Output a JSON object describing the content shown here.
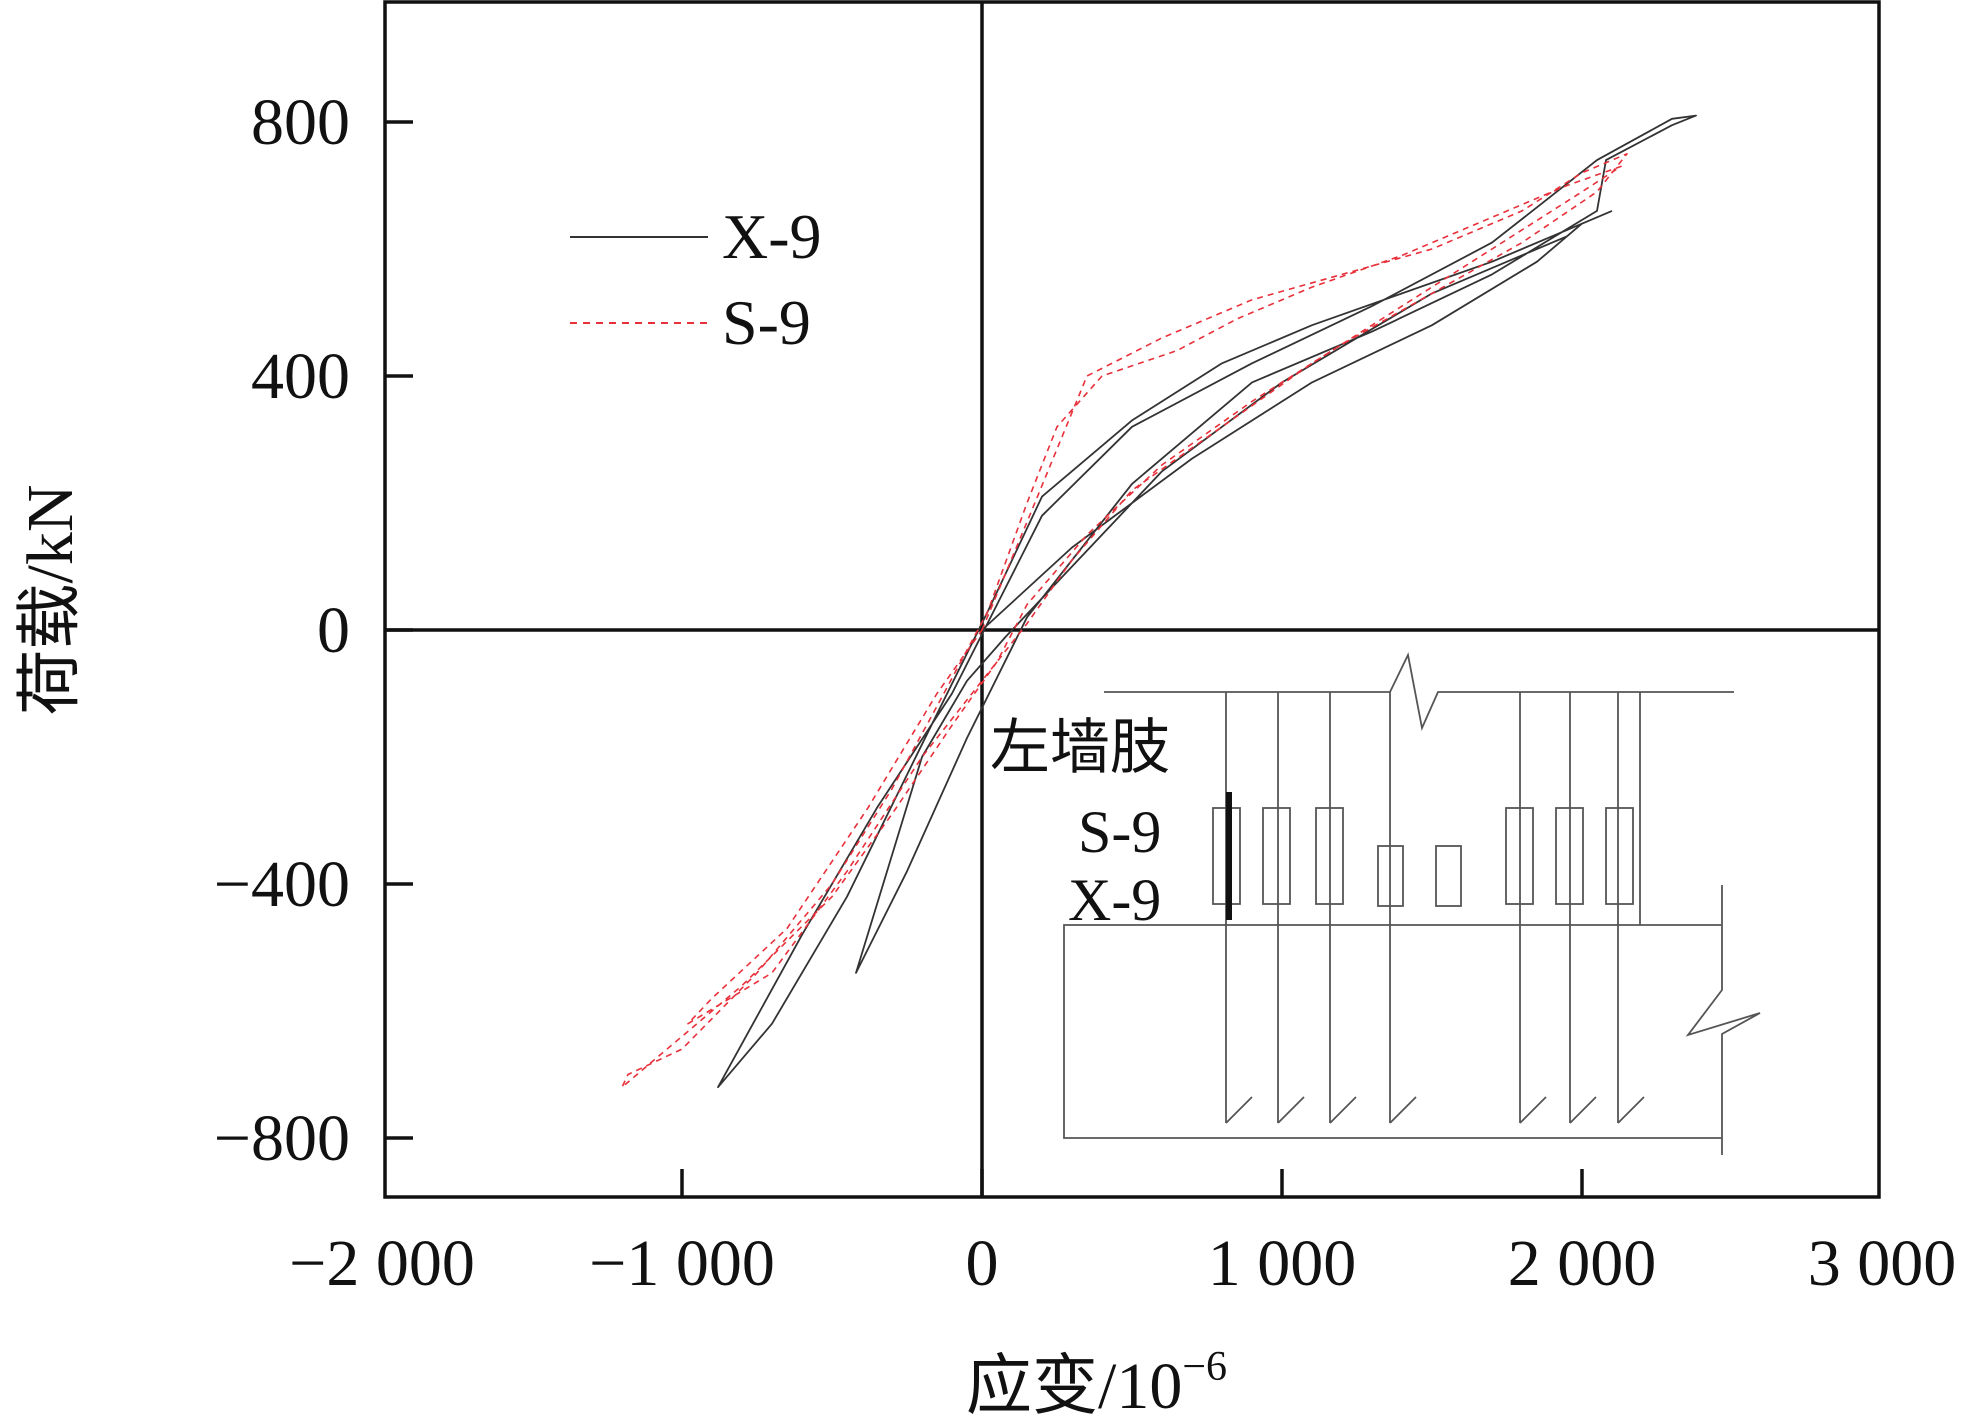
{
  "chart_data": {
    "type": "line",
    "xlabel": "应变/10",
    "xlabel_sup": "−6",
    "ylabel": "荷载/kN",
    "xlim": [
      -2000,
      3000
    ],
    "ylim": [
      -900,
      1000
    ],
    "x_ticks": [
      -2000,
      -1000,
      0,
      1000,
      2000,
      3000
    ],
    "x_tick_labels": [
      "−2 000",
      "−1 000",
      "0",
      "1 000",
      "2 000",
      "3 000"
    ],
    "y_ticks": [
      -800,
      -400,
      0,
      400,
      800
    ],
    "y_tick_labels": [
      "−800",
      "−400",
      "0",
      "400",
      "800"
    ],
    "grid": false,
    "legend": "top-left",
    "series": [
      {
        "name": "X-9",
        "color": "#333333",
        "style": "solid",
        "x": [
          0,
          300,
          700,
          1100,
          1500,
          1850,
          2000,
          1950,
          1500,
          1000,
          600,
          300,
          80,
          -50,
          -200,
          -420,
          -250,
          -50,
          150,
          500,
          900,
          1300,
          1700,
          2050,
          2080,
          2300,
          2380,
          2300,
          2050,
          1700,
          1300,
          900,
          500,
          200,
          50,
          -100,
          -350,
          -600,
          -880,
          -700,
          -450,
          -200,
          20,
          200,
          500,
          800,
          1100,
          1400,
          1700,
          1900,
          2050,
          2100
        ],
        "y": [
          0,
          130,
          270,
          390,
          480,
          580,
          640,
          620,
          530,
          390,
          250,
          100,
          -10,
          -80,
          -200,
          -540,
          -380,
          -170,
          20,
          230,
          390,
          470,
          560,
          660,
          740,
          795,
          810,
          805,
          740,
          610,
          510,
          420,
          320,
          180,
          40,
          -100,
          -280,
          -480,
          -720,
          -620,
          -420,
          -180,
          30,
          210,
          330,
          420,
          480,
          530,
          580,
          620,
          650,
          660
        ]
      },
      {
        "name": "S-9",
        "color": "#e8303a",
        "style": "dashed",
        "x": [
          0,
          150,
          350,
          600,
          900,
          1200,
          1500,
          1800,
          2000,
          2150,
          2050,
          1800,
          1500,
          1200,
          900,
          600,
          350,
          150,
          50,
          -100,
          -300,
          -500,
          -800,
          -1000,
          -1200,
          -1180,
          -1000,
          -750,
          -500,
          -300,
          -150,
          20,
          150,
          250,
          400,
          650,
          850,
          1100,
          1400,
          1700,
          1950,
          2130,
          2000,
          1700,
          1400,
          1100,
          800,
          500,
          300,
          150,
          0,
          -200,
          -450,
          -700,
          -980,
          -900,
          -650,
          -380,
          -150,
          0
        ],
        "y": [
          0,
          170,
          400,
          460,
          520,
          560,
          600,
          660,
          720,
          750,
          690,
          610,
          530,
          450,
          360,
          260,
          150,
          40,
          -50,
          -150,
          -290,
          -420,
          -560,
          -640,
          -720,
          -700,
          -660,
          -540,
          -400,
          -250,
          -120,
          30,
          200,
          320,
          400,
          440,
          490,
          540,
          590,
          650,
          700,
          730,
          690,
          600,
          510,
          420,
          320,
          220,
          110,
          10,
          -80,
          -200,
          -380,
          -540,
          -620,
          -580,
          -470,
          -280,
          -100,
          0
        ]
      }
    ]
  },
  "inset": {
    "title": "左墙肢",
    "labels": [
      "S-9",
      "X-9"
    ]
  }
}
